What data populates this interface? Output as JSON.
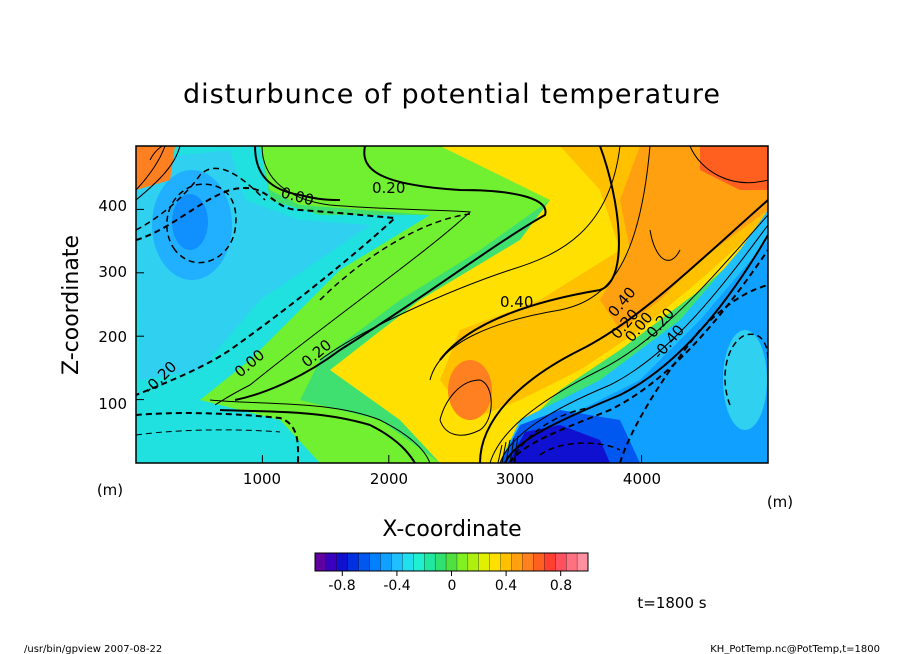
{
  "chart_data": {
    "type": "heatmap",
    "title": "disturbunce of potential temperature",
    "xlabel": "X-coordinate",
    "ylabel": "Z-coordinate",
    "x_unit": "(m)",
    "y_unit": "(m)",
    "xlim": [
      0,
      5000
    ],
    "ylim": [
      0,
      500
    ],
    "x_ticks": [
      "1000",
      "2000",
      "3000",
      "4000"
    ],
    "y_ticks": [
      "100",
      "200",
      "300",
      "400"
    ],
    "contour_labels": [
      "0.00",
      "0.20",
      "-0.20",
      "0.00",
      "0.20",
      "0.40",
      "0.40",
      "0.20",
      "0.00",
      "-0.20",
      "-0.40"
    ],
    "colorbar": {
      "range": [
        -1.0,
        1.0
      ],
      "tick_labels": [
        "-0.8",
        "-0.4",
        "0",
        "0.4",
        "0.8"
      ]
    },
    "time_label": "t=1800 s"
  },
  "footer": {
    "left": "/usr/bin/gpview  2007-08-22",
    "right": "KH_PotTemp.nc@PotTemp,t=1800"
  },
  "colors": {
    "palette": [
      "#6000a0",
      "#3a00c0",
      "#1010d0",
      "#0030e0",
      "#0058f0",
      "#0080ff",
      "#10a0ff",
      "#20c0ff",
      "#20e0f0",
      "#20f0d0",
      "#20e8a0",
      "#30e070",
      "#50e040",
      "#80f020",
      "#b0f010",
      "#e0f000",
      "#ffe000",
      "#ffc000",
      "#ffa010",
      "#ff8020",
      "#ff6020",
      "#ff4030",
      "#ff5060",
      "#ff7080",
      "#ff90a0"
    ]
  }
}
